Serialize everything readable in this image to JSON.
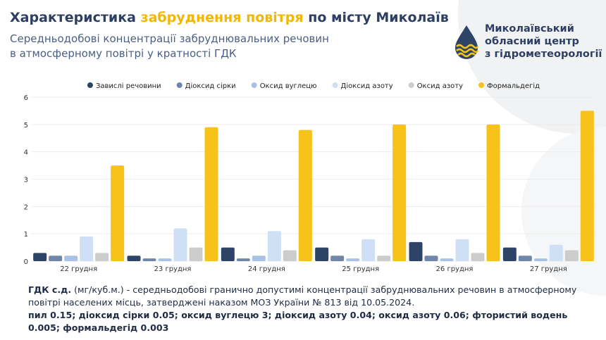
{
  "header": {
    "title_parts": [
      "Характеристика",
      "забруднення повітря",
      "по місту Миколаїв"
    ],
    "subtitle_lines": [
      "Середньодобові концентрації забруднювальних речовин",
      "в атмосферному повітрі у кратності ГДК"
    ]
  },
  "logo": {
    "lines": [
      "Миколаївський",
      "обласний центр",
      "з гідрометеорології"
    ]
  },
  "chart_data": {
    "type": "bar",
    "categories": [
      "22 грудня",
      "23 грудня",
      "24 грудня",
      "25 грудня",
      "26 грудня",
      "27 грудня"
    ],
    "series": [
      {
        "name": "Завислі речовини",
        "color": "#2d4466",
        "values": [
          0.3,
          0.2,
          0.5,
          0.5,
          0.7,
          0.5
        ]
      },
      {
        "name": "Діоксид сірки",
        "color": "#6f86a8",
        "values": [
          0.2,
          0.1,
          0.1,
          0.2,
          0.2,
          0.2
        ]
      },
      {
        "name": "Оксид вуглецю",
        "color": "#a9c1e6",
        "values": [
          0.2,
          0.1,
          0.2,
          0.1,
          0.1,
          0.1
        ]
      },
      {
        "name": "Діоксид азоту",
        "color": "#cfdff5",
        "values": [
          0.9,
          1.2,
          1.1,
          0.8,
          0.8,
          0.6
        ]
      },
      {
        "name": "Оксид азоту",
        "color": "#cccccc",
        "values": [
          0.3,
          0.5,
          0.4,
          0.2,
          0.3,
          0.4
        ]
      },
      {
        "name": "Формальдегід",
        "color": "#f7c21a",
        "values": [
          3.5,
          4.9,
          4.8,
          5.0,
          5.0,
          5.5
        ]
      }
    ],
    "ylim": [
      0,
      6
    ],
    "yticks": [
      0,
      1,
      2,
      3,
      4,
      5,
      6
    ],
    "grid": true,
    "legend": "top"
  },
  "note": {
    "term": "ГДК с.д.",
    "text": "(мг/куб.м.) - середньодобові гранично допустимі концентрації забруднювальних речовин в атмосферному повітрі населених місць, затверджені наказом МОЗ України № 813 від 10.05.2024.",
    "limits": "пил 0.15; діоксид сірки 0.05; оксид вуглецю 3; діоксид азоту 0.04; оксид азоту 0.06; фтористий водень 0.005; формальдегід 0.003"
  }
}
